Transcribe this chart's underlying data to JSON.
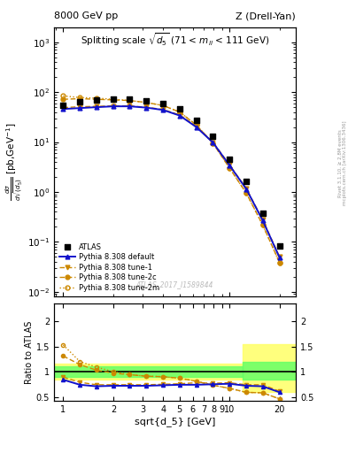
{
  "title_left": "8000 GeV pp",
  "title_right": "Z (Drell-Yan)",
  "main_title": "Splitting scale $\\sqrt{d_5}$ (71 < $m_{ll}$ < 111 GeV)",
  "xlabel": "sqrt{d_5} [GeV]",
  "ylabel_main": "d$\\sigma$\ndsqrt($\\overline{d}_{5}$) [pb,GeV$^{-1}$]",
  "ylabel_ratio": "Ratio to ATLAS",
  "watermark": "ATLAS_2017_I1589844",
  "right_label": "mcplots.cern.ch [arXiv:1306.3436]",
  "right_label2": "Rivet 3.1.10, ≥ 2.8M events",
  "x_atlas": [
    1.0,
    1.26,
    1.58,
    2.0,
    2.51,
    3.16,
    3.98,
    5.01,
    6.31,
    7.94,
    10.0,
    12.6,
    15.8,
    20.0
  ],
  "y_atlas": [
    55,
    65,
    70,
    72,
    72,
    68,
    60,
    46,
    27,
    13,
    4.5,
    1.6,
    0.38,
    0.082
  ],
  "x_py_default": [
    1.0,
    1.26,
    1.58,
    2.0,
    2.51,
    3.16,
    3.98,
    5.01,
    6.31,
    7.94,
    10.0,
    12.6,
    15.8,
    20.0
  ],
  "y_py_default": [
    46,
    48,
    50,
    52,
    52,
    49,
    44,
    34,
    20,
    9.8,
    3.4,
    1.15,
    0.27,
    0.048
  ],
  "x_py_tune1": [
    1.0,
    1.26,
    1.58,
    2.0,
    2.51,
    3.16,
    3.98,
    5.01,
    6.31,
    7.94,
    10.0,
    12.6,
    15.8,
    20.0
  ],
  "y_py_tune1": [
    49,
    51,
    52,
    53,
    53,
    50,
    45,
    35,
    21,
    10.0,
    3.5,
    1.18,
    0.28,
    0.05
  ],
  "x_py_tune2c": [
    1.0,
    1.26,
    1.58,
    2.0,
    2.51,
    3.16,
    3.98,
    5.01,
    6.31,
    7.94,
    10.0,
    12.6,
    15.8,
    20.0
  ],
  "y_py_tune2c": [
    72,
    74,
    72,
    70,
    68,
    62,
    54,
    40,
    22,
    9.5,
    3.0,
    0.95,
    0.22,
    0.038
  ],
  "x_py_tune2m": [
    1.0,
    1.26,
    1.58,
    2.0,
    2.51,
    3.16,
    3.98,
    5.01,
    6.31,
    7.94,
    10.0,
    12.6,
    15.8,
    20.0
  ],
  "y_py_tune2m": [
    84,
    78,
    76,
    72,
    68,
    62,
    54,
    40,
    22,
    9.5,
    3.0,
    0.95,
    0.22,
    0.038
  ],
  "ratio_x": [
    1.0,
    1.26,
    1.58,
    2.0,
    2.51,
    3.16,
    3.98,
    5.01,
    6.31,
    7.94,
    10.0,
    12.6,
    15.8,
    20.0
  ],
  "ratio_default": [
    0.84,
    0.74,
    0.71,
    0.72,
    0.72,
    0.72,
    0.73,
    0.74,
    0.74,
    0.75,
    0.76,
    0.72,
    0.71,
    0.59
  ],
  "ratio_tune1": [
    0.89,
    0.79,
    0.74,
    0.74,
    0.74,
    0.74,
    0.75,
    0.76,
    0.78,
    0.77,
    0.78,
    0.74,
    0.74,
    0.61
  ],
  "ratio_tune2c": [
    1.31,
    1.14,
    1.03,
    0.97,
    0.94,
    0.91,
    0.9,
    0.87,
    0.81,
    0.73,
    0.67,
    0.59,
    0.58,
    0.46
  ],
  "ratio_tune2m": [
    1.53,
    1.2,
    1.09,
    1.0,
    0.94,
    0.91,
    0.9,
    0.87,
    0.81,
    0.73,
    0.67,
    0.59,
    0.58,
    0.46
  ],
  "color_atlas": "#000000",
  "color_default": "#1111cc",
  "color_tune1": "#cc8800",
  "color_tune2c": "#cc8800",
  "color_tune2m": "#cc8800",
  "green_band_lo1": 0.9,
  "green_band_hi1": 1.1,
  "green_band_lo2": 0.85,
  "green_band_hi2": 1.2,
  "yellow_band_lo1": 0.85,
  "yellow_band_hi1": 1.15,
  "yellow_band_lo2": 0.6,
  "yellow_band_hi2": 1.55,
  "band_split_x": 12.0,
  "ylim_main": [
    0.008,
    2000
  ],
  "ylim_ratio": [
    0.42,
    2.35
  ],
  "xlim": [
    0.88,
    25
  ]
}
